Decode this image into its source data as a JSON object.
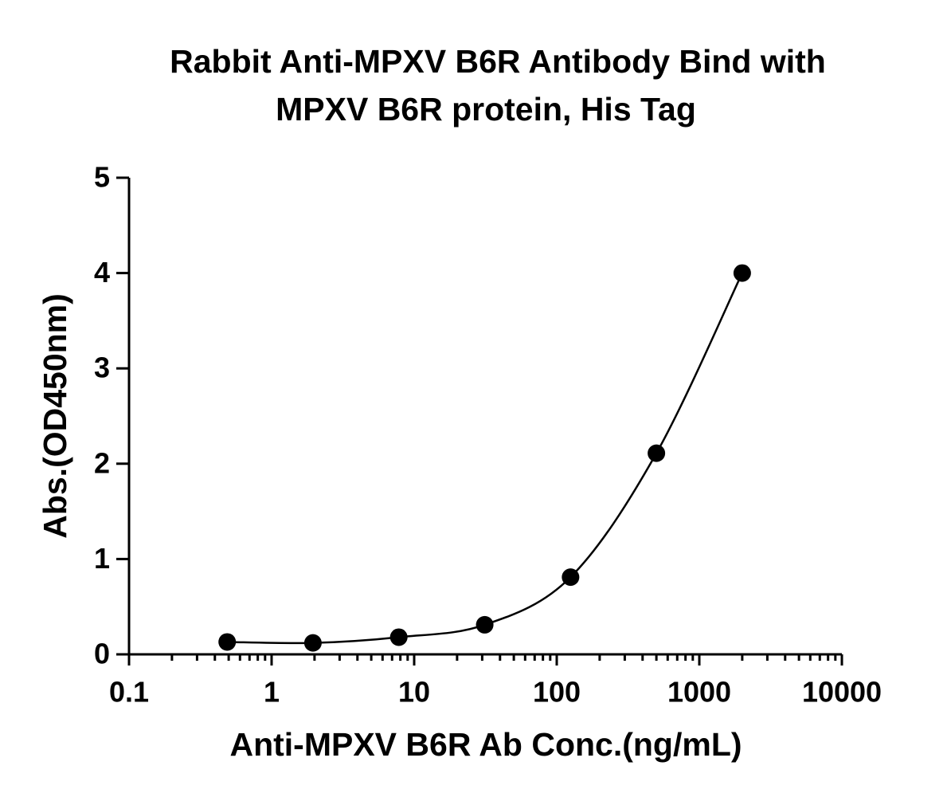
{
  "chart_data": {
    "type": "scatter",
    "title": [
      "Rabbit Anti-MPXV B6R Antibody Bind with",
      "MPXV B6R protein, His Tag"
    ],
    "x_label": "Anti-MPXV B6R Ab Conc.(ng/mL)",
    "y_label": "Abs.(OD450nm)",
    "x": [
      0.488,
      1.95,
      7.8,
      31.25,
      125,
      500,
      2000
    ],
    "series": [
      {
        "color": "#000000",
        "values": [
          0.13,
          0.12,
          0.18,
          0.31,
          0.81,
          2.11,
          4.0
        ]
      }
    ],
    "x_log": true,
    "fit_curve": true,
    "xlim": [
      0.1,
      10000
    ],
    "xticks": [
      0.1,
      1,
      10,
      100,
      1000,
      10000
    ],
    "ylim": [
      0,
      5
    ],
    "yticks": [
      0,
      1,
      2,
      3,
      4,
      5
    ]
  }
}
